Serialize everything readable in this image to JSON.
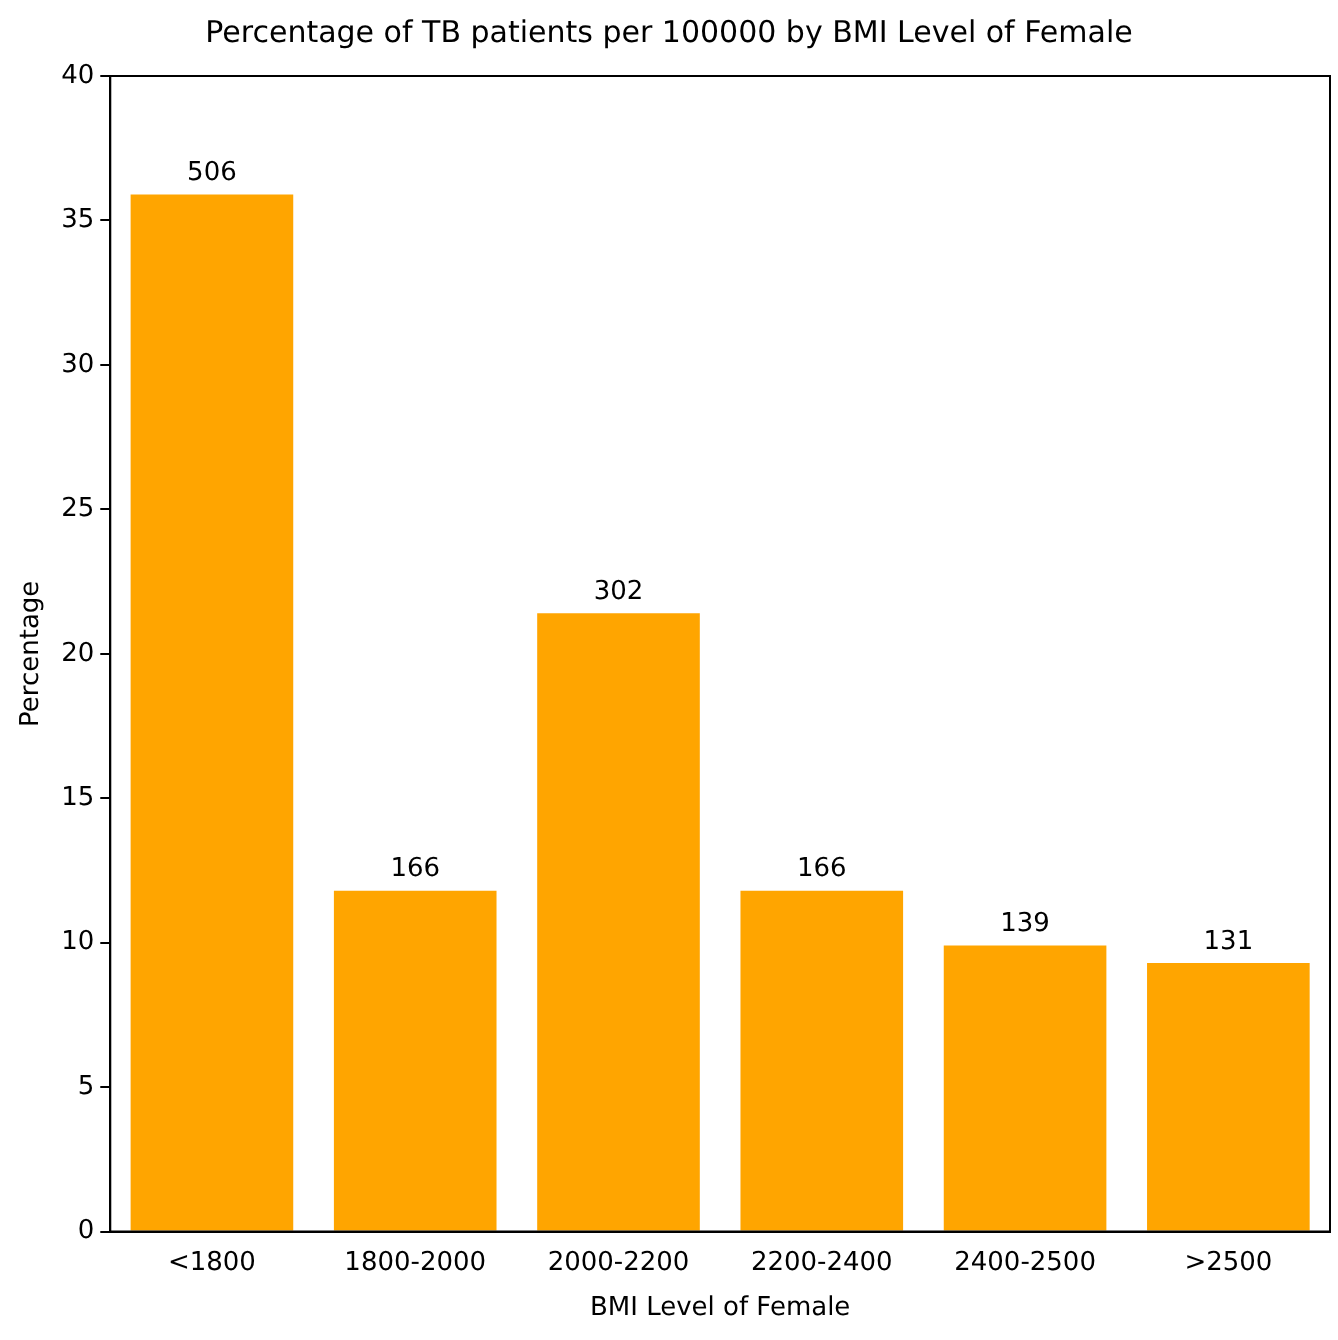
{
  "chart_data": {
    "type": "bar",
    "title": "Percentage of TB patients per 100000 by BMI Level of Female",
    "xlabel": "BMI Level of Female",
    "ylabel": "Percentage",
    "categories": [
      "<1800",
      "1800-2000",
      "2000-2200",
      "2200-2400",
      "2400-2500",
      ">2500"
    ],
    "values": [
      35.9,
      11.8,
      21.4,
      11.8,
      9.9,
      9.3
    ],
    "annotations": [
      {
        "text": "506",
        "x": "<1800",
        "y": 35.9
      },
      {
        "text": "166",
        "x": "1800-2000",
        "y": 11.8
      },
      {
        "text": "302",
        "x": "2000-2200",
        "y": 21.4
      },
      {
        "text": "166",
        "x": "2200-2400",
        "y": 11.8
      },
      {
        "text": "139",
        "x": "2400-2500",
        "y": 9.9
      },
      {
        "text": "131",
        "x": ">2500",
        "y": 9.3
      }
    ],
    "color": "#ffa500",
    "ylim": [
      0,
      40
    ],
    "yticks": [
      0,
      5,
      10,
      15,
      20,
      25,
      30,
      35,
      40
    ],
    "grid": false,
    "legend": false
  }
}
